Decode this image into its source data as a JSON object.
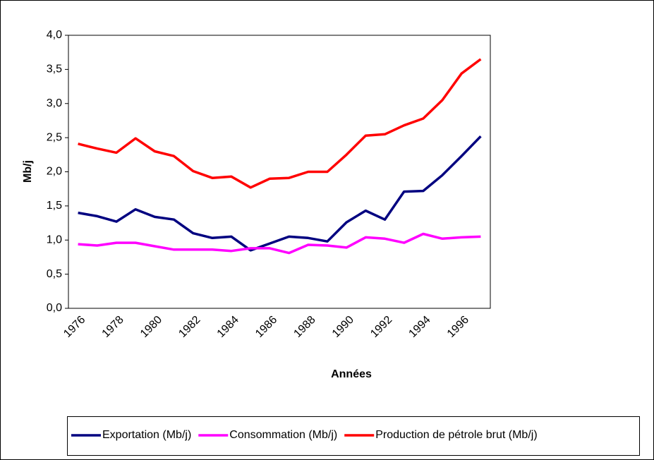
{
  "chart_data": {
    "type": "line",
    "x_label": "Années",
    "y_label": "Mb/j",
    "categories": [
      "1976",
      null,
      "1978",
      null,
      "1980",
      null,
      "1982",
      null,
      "1984",
      null,
      "1986",
      null,
      "1988",
      null,
      "1990",
      null,
      "1992",
      null,
      "1994",
      null,
      "1996",
      null
    ],
    "series": [
      {
        "name": "Exportation (Mb/j)",
        "color": "#000080",
        "values": [
          1.4,
          1.35,
          1.27,
          1.45,
          1.34,
          1.3,
          1.1,
          1.03,
          1.05,
          0.85,
          0.95,
          1.05,
          1.03,
          0.98,
          1.26,
          1.43,
          1.3,
          1.71,
          1.72,
          1.95,
          2.23,
          2.52
        ]
      },
      {
        "name": "Consommation (Mb/j)",
        "color": "#ff00ff",
        "values": [
          0.94,
          0.92,
          0.96,
          0.96,
          0.91,
          0.86,
          0.86,
          0.86,
          0.84,
          0.88,
          0.88,
          0.81,
          0.93,
          0.92,
          0.89,
          1.04,
          1.02,
          0.96,
          1.09,
          1.02,
          1.04,
          1.05
        ]
      },
      {
        "name": "Production de pétrole brut (Mb/j)",
        "color": "#ff0000",
        "values": [
          2.41,
          2.34,
          2.28,
          2.49,
          2.3,
          2.23,
          2.01,
          1.91,
          1.93,
          1.77,
          1.9,
          1.91,
          2.0,
          2.0,
          2.25,
          2.53,
          2.55,
          2.68,
          2.78,
          3.05,
          3.44,
          3.65
        ]
      }
    ],
    "ylim": [
      0,
      4
    ],
    "yticks": [
      {
        "value": 0,
        "label": "0,0"
      },
      {
        "value": 0.5,
        "label": "0,5"
      },
      {
        "value": 1,
        "label": "1,0"
      },
      {
        "value": 1.5,
        "label": "1,5"
      },
      {
        "value": 2,
        "label": "2,0"
      },
      {
        "value": 2.5,
        "label": "2,5"
      },
      {
        "value": 3,
        "label": "3,0"
      },
      {
        "value": 3.5,
        "label": "3,5"
      },
      {
        "value": 4,
        "label": "4,0"
      }
    ],
    "grid": false,
    "legend": "bottom"
  }
}
